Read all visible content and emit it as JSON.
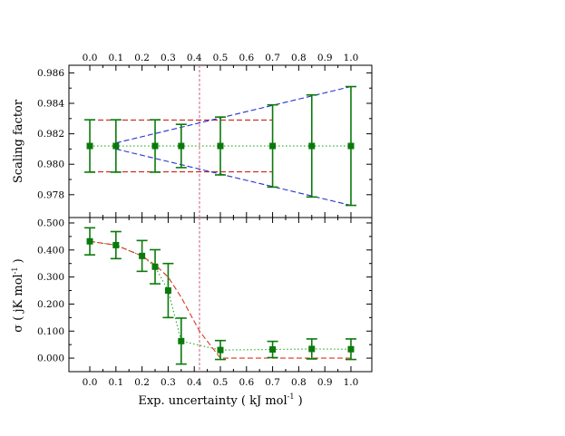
{
  "chart_data": [
    {
      "type": "scatter",
      "panel": "top",
      "ylabel": "Scaling factor",
      "xlim": [
        -0.08,
        1.08
      ],
      "ylim": [
        0.9765,
        0.9865
      ],
      "yticks": [
        0.978,
        0.98,
        0.982,
        0.984,
        0.986
      ],
      "ytick_labels": [
        "0.978",
        "0.980",
        "0.982",
        "0.984",
        "0.986"
      ],
      "xticks": [
        0.0,
        0.1,
        0.2,
        0.3,
        0.4,
        0.5,
        0.6,
        0.7,
        0.8,
        0.9,
        1.0
      ],
      "xtick_labels_top": [
        "0.0",
        "0.1",
        "0.2",
        "0.3",
        "0.4",
        "0.5",
        "0.6",
        "0.7",
        "0.8",
        "0.9",
        "1.0"
      ],
      "series": [
        {
          "name": "scaling factor",
          "color": "#0a7a0a",
          "marker": "square",
          "x": [
            0.0,
            0.1,
            0.25,
            0.35,
            0.5,
            0.7,
            0.85,
            1.0
          ],
          "y": [
            0.9812,
            0.9812,
            0.9812,
            0.9812,
            0.9812,
            0.9812,
            0.9812,
            0.9812
          ],
          "err": [
            0.00172,
            0.00172,
            0.00172,
            0.00142,
            0.0019,
            0.0027,
            0.00335,
            0.0039
          ]
        }
      ],
      "lines": [
        {
          "name": "mean-line",
          "style": "dotted",
          "color": "#22aa22",
          "x": [
            0.0,
            1.0
          ],
          "y": [
            0.9812,
            0.9812
          ]
        },
        {
          "name": "upper-band",
          "style": "dashed",
          "color": "#cc2222",
          "x": [
            0.0,
            0.7
          ],
          "y": [
            0.9829,
            0.9829
          ]
        },
        {
          "name": "lower-band",
          "style": "dashed",
          "color": "#cc2222",
          "x": [
            0.0,
            0.7
          ],
          "y": [
            0.9795,
            0.9795
          ]
        },
        {
          "name": "upper-envelope",
          "style": "dashed",
          "color": "#2233cc",
          "x": [
            0.1,
            1.0
          ],
          "y": [
            0.9814,
            0.9851
          ]
        },
        {
          "name": "lower-envelope",
          "style": "dashed",
          "color": "#2233cc",
          "x": [
            0.1,
            1.0
          ],
          "y": [
            0.981,
            0.9773
          ]
        }
      ],
      "vline": {
        "x": 0.42,
        "color": "#d06080",
        "style": "dashed"
      }
    },
    {
      "type": "scatter",
      "panel": "bottom",
      "xlabel": "Exp. uncertainty ( kJ mol",
      "xlabel_sup": "-1",
      "xlabel_tail": " )",
      "ylabel": "σ ( jK mol",
      "ylabel_sup": "-1",
      "ylabel_tail": " )",
      "xlim": [
        -0.08,
        1.08
      ],
      "ylim": [
        -0.05,
        0.52
      ],
      "yticks": [
        0.0,
        0.1,
        0.2,
        0.3,
        0.4,
        0.5
      ],
      "ytick_labels": [
        "0.000",
        "0.100",
        "0.200",
        "0.300",
        "0.400",
        "0.500"
      ],
      "xticks": [
        0.0,
        0.1,
        0.2,
        0.3,
        0.4,
        0.5,
        0.6,
        0.7,
        0.8,
        0.9,
        1.0
      ],
      "xtick_labels": [
        "0.0",
        "0.1",
        "0.2",
        "0.3",
        "0.4",
        "0.5",
        "0.6",
        "0.7",
        "0.8",
        "0.9",
        "1.0"
      ],
      "series": [
        {
          "name": "sigma",
          "color": "#0a7a0a",
          "marker": "square",
          "x": [
            0.0,
            0.1,
            0.2,
            0.25,
            0.3,
            0.35,
            0.5,
            0.7,
            0.85,
            1.0
          ],
          "y": [
            0.432,
            0.418,
            0.378,
            0.338,
            0.25,
            0.063,
            0.03,
            0.032,
            0.034,
            0.033
          ],
          "err": [
            0.05,
            0.05,
            0.057,
            0.063,
            0.1,
            0.085,
            0.035,
            0.03,
            0.037,
            0.038
          ]
        },
        {
          "name": "sigma-connect",
          "style": "dotted",
          "color": "#22aa22",
          "x": [
            0.0,
            0.1,
            0.2,
            0.25,
            0.3,
            0.35,
            0.5,
            0.7,
            0.85,
            1.0
          ],
          "y": [
            0.432,
            0.418,
            0.378,
            0.338,
            0.25,
            0.063,
            0.03,
            0.032,
            0.034,
            0.033
          ]
        },
        {
          "name": "sigma-model",
          "style": "dashed",
          "color": "#dd3322",
          "x": [
            0.0,
            0.1,
            0.2,
            0.25,
            0.3,
            0.35,
            0.42,
            0.5,
            0.7,
            0.85,
            1.0
          ],
          "y": [
            0.432,
            0.418,
            0.378,
            0.345,
            0.3,
            0.225,
            0.1,
            0.0,
            0.0,
            0.0,
            0.0
          ]
        }
      ],
      "vline": {
        "x": 0.42,
        "color": "#d06080",
        "style": "dashed"
      }
    }
  ]
}
